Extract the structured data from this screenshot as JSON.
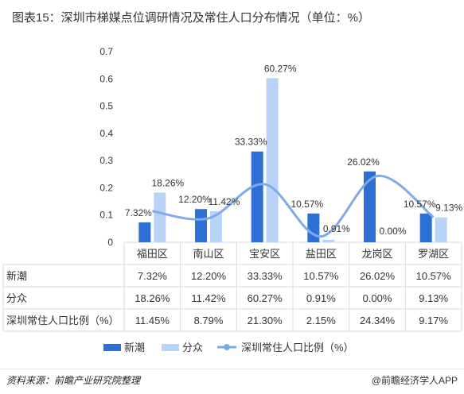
{
  "title": "图表15：深圳市梯媒点位调研情况及常住人口分布情况（单位：%）",
  "footer": {
    "source": "资料来源：前瞻产业研究院整理",
    "brand": "@前瞻经济学人APP"
  },
  "colors": {
    "xinchao": "#2e6fd6",
    "fenzhong": "#b7d3f7",
    "population": "#7eaaea",
    "grid": "#d9d9d9",
    "text": "#333333"
  },
  "chart_data": {
    "type": "bar",
    "categories": [
      "福田区",
      "南山区",
      "宝安区",
      "盐田区",
      "龙岗区",
      "罗湖区"
    ],
    "series": [
      {
        "name": "新潮",
        "type": "bar",
        "values": [
          0.0732,
          0.122,
          0.3333,
          0.1057,
          0.2602,
          0.1057
        ],
        "labels": [
          "7.32%",
          "12.20%",
          "33.33%",
          "10.57%",
          "26.02%",
          "10.57%"
        ]
      },
      {
        "name": "分众",
        "type": "bar",
        "values": [
          0.1826,
          0.1142,
          0.6027,
          0.0091,
          0.0,
          0.0913
        ],
        "labels": [
          "18.26%",
          "11.42%",
          "60.27%",
          "0.91%",
          "0.00%",
          "9.13%"
        ]
      },
      {
        "name": "深圳常住人口比例（%）",
        "type": "line",
        "smooth": true,
        "values": [
          0.1145,
          0.0879,
          0.213,
          0.0215,
          0.2434,
          0.0917
        ]
      }
    ],
    "yticks": [
      "0",
      "0.1",
      "0.2",
      "0.3",
      "0.4",
      "0.5",
      "0.6",
      "0.7"
    ],
    "ylim": [
      0,
      0.7
    ],
    "data_table": {
      "rows": [
        {
          "label": "新潮",
          "cells": [
            "7.32%",
            "12.20%",
            "33.33%",
            "10.57%",
            "26.02%",
            "10.57%"
          ]
        },
        {
          "label": "分众",
          "cells": [
            "18.26%",
            "11.42%",
            "60.27%",
            "0.91%",
            "0.00%",
            "9.13%"
          ]
        },
        {
          "label": "深圳常住人口比例（%）",
          "cells": [
            "11.45%",
            "8.79%",
            "21.30%",
            "2.15%",
            "24.34%",
            "9.17%"
          ]
        }
      ]
    },
    "legend_position": "bottom"
  }
}
